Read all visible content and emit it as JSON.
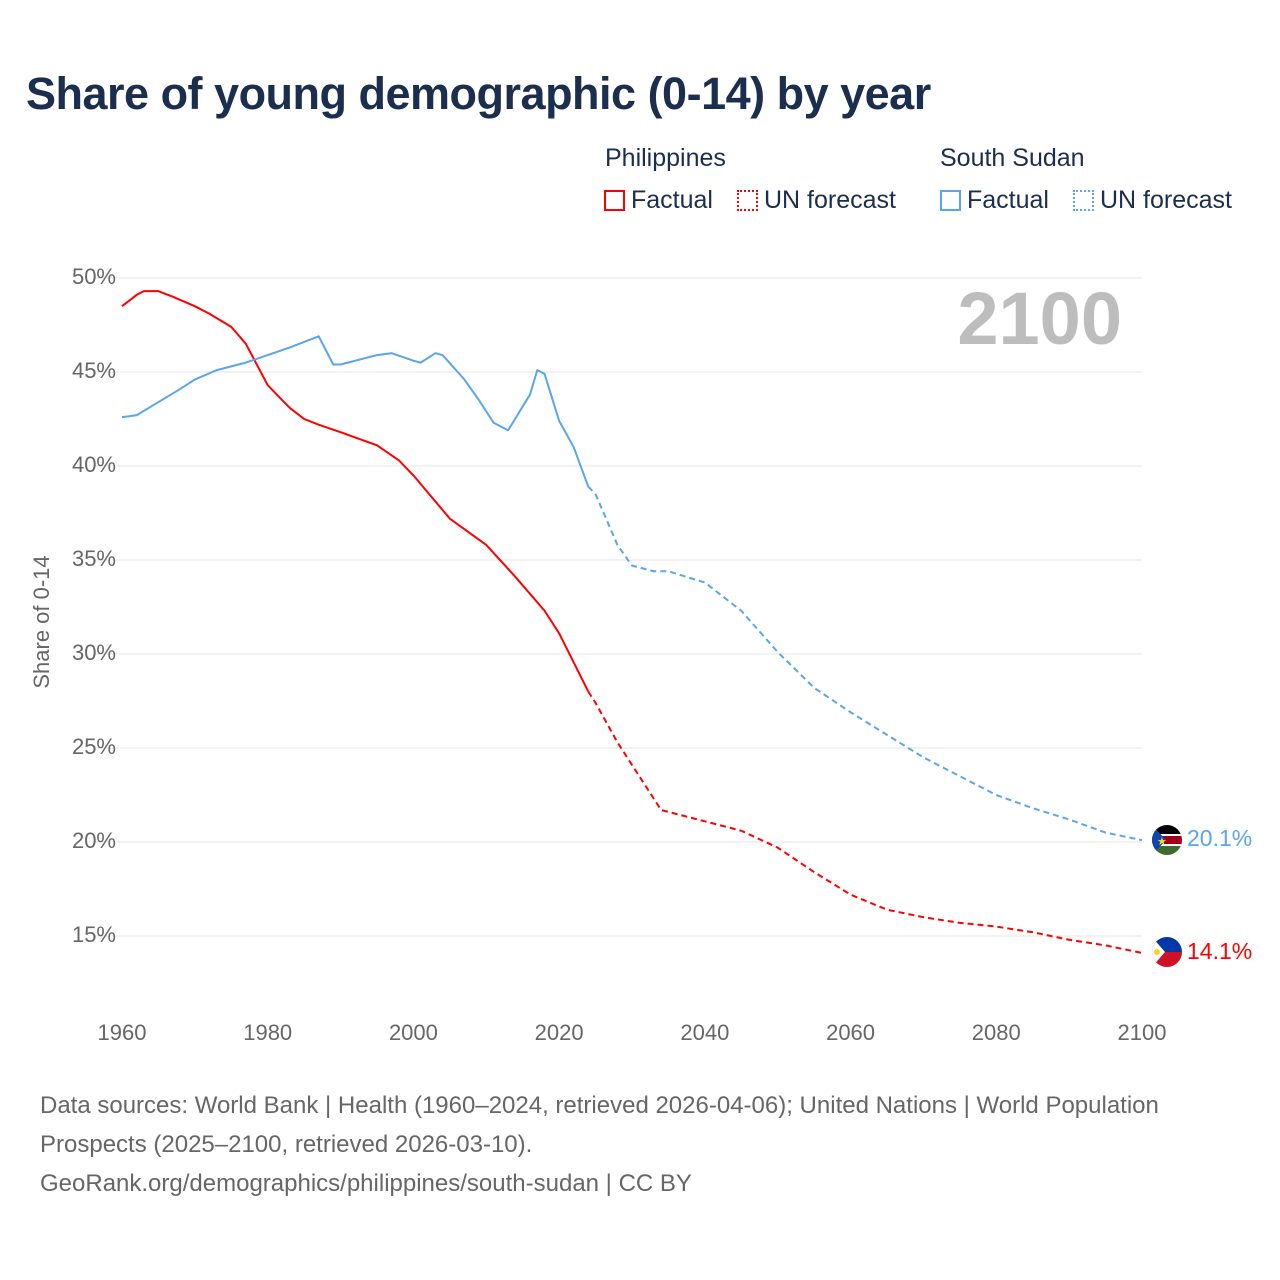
{
  "title": "Share of young demographic (0-14) by year",
  "legend": {
    "groups": [
      {
        "name": "Philippines",
        "factual": "Factual",
        "forecast": "UN forecast",
        "color": "#ff0000"
      },
      {
        "name": "South Sudan",
        "factual": "Factual",
        "forecast": "UN forecast",
        "color": "#5aa5eb"
      }
    ]
  },
  "current_year": "2100",
  "end_labels": {
    "south_sudan": "20.1%",
    "philippines": "14.1%"
  },
  "footer": {
    "line1": "Data sources: World Bank | Health (1960–2024, retrieved 2026-04-06); United Nations | World Population Prospects (2025–2100, retrieved 2026-03-10).",
    "line2": "GeoRank.org/demographics/philippines/south-sudan | CC BY"
  },
  "chart_data": {
    "type": "line",
    "title": "Share of young demographic (0-14) by year",
    "xlabel": "",
    "ylabel": "Share of 0-14",
    "xlim": [
      1960,
      2100
    ],
    "ylim": [
      12,
      50
    ],
    "x_ticks": [
      "1960",
      "1980",
      "2000",
      "2020",
      "2040",
      "2060",
      "2080",
      "2100"
    ],
    "y_ticks": [
      "50%",
      "45%",
      "40%",
      "35%",
      "30%",
      "25%",
      "20%",
      "15%"
    ],
    "y_tick_values": [
      50,
      45,
      40,
      35,
      30,
      25,
      20,
      15
    ],
    "grid": true,
    "legend_position": "top-right",
    "series": [
      {
        "name": "Philippines – Factual",
        "color": "#ff0000",
        "style": "solid",
        "x": [
          1960,
          1962,
          1963,
          1965,
          1967,
          1970,
          1972,
          1975,
          1977,
          1980,
          1983,
          1985,
          1987,
          1990,
          1995,
          1998,
          2000,
          2005,
          2010,
          2014,
          2018,
          2020,
          2024
        ],
        "y": [
          48.5,
          49.1,
          49.3,
          49.3,
          49.0,
          48.5,
          48.1,
          47.4,
          46.5,
          44.3,
          43.1,
          42.5,
          42.2,
          41.8,
          41.1,
          40.3,
          39.5,
          37.2,
          35.8,
          34.1,
          32.3,
          31.1,
          28.0
        ]
      },
      {
        "name": "Philippines – UN forecast",
        "color": "#ff0000",
        "style": "dashed",
        "x": [
          2024,
          2025,
          2028,
          2030,
          2034,
          2040,
          2045,
          2050,
          2055,
          2060,
          2065,
          2070,
          2075,
          2080,
          2085,
          2090,
          2095,
          2100
        ],
        "y": [
          28.0,
          27.4,
          25.3,
          24.1,
          21.7,
          21.1,
          20.6,
          19.7,
          18.4,
          17.2,
          16.4,
          16.0,
          15.7,
          15.5,
          15.2,
          14.8,
          14.5,
          14.1
        ]
      },
      {
        "name": "South Sudan – Factual",
        "color": "#5aa5eb",
        "style": "solid",
        "x": [
          1960,
          1962,
          1965,
          1968,
          1970,
          1973,
          1977,
          1980,
          1983,
          1987,
          1989,
          1990,
          1995,
          1997,
          2000,
          2001,
          2003,
          2004,
          2007,
          2009,
          2011,
          2013,
          2016,
          2017,
          2018,
          2020,
          2022,
          2024
        ],
        "y": [
          42.6,
          42.7,
          43.4,
          44.1,
          44.6,
          45.1,
          45.5,
          45.9,
          46.3,
          46.9,
          45.4,
          45.4,
          45.9,
          46.0,
          45.6,
          45.5,
          46.0,
          45.9,
          44.6,
          43.5,
          42.3,
          41.9,
          43.8,
          45.1,
          44.9,
          42.4,
          41.0,
          38.9
        ]
      },
      {
        "name": "South Sudan – UN forecast",
        "color": "#5aa5eb",
        "style": "dashed",
        "x": [
          2024,
          2025,
          2028,
          2030,
          2033,
          2035,
          2040,
          2045,
          2050,
          2055,
          2060,
          2065,
          2070,
          2075,
          2080,
          2085,
          2090,
          2095,
          2100
        ],
        "y": [
          38.9,
          38.5,
          35.8,
          34.7,
          34.4,
          34.4,
          33.8,
          32.3,
          30.1,
          28.2,
          26.9,
          25.7,
          24.5,
          23.5,
          22.5,
          21.8,
          21.2,
          20.5,
          20.1
        ]
      }
    ]
  }
}
